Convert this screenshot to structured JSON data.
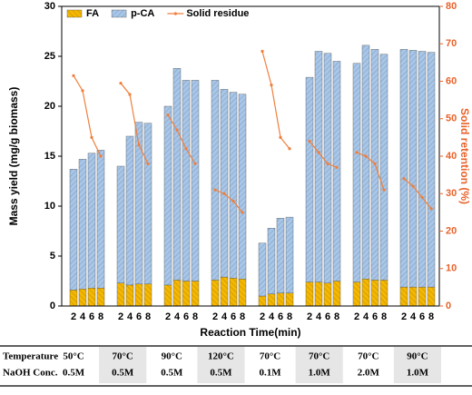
{
  "chart_data": {
    "type": "bar",
    "x_label": "Reaction Time(min)",
    "y_label": "Mass yield (mg/g biomass)",
    "y2_label": "Solid retention (%)",
    "categories": [
      "2",
      "4",
      "6",
      "8",
      "2",
      "4",
      "6",
      "8",
      "2",
      "4",
      "6",
      "8",
      "2",
      "4",
      "6",
      "8",
      "2",
      "4",
      "6",
      "8",
      "2",
      "4",
      "6",
      "8",
      "2",
      "4",
      "6",
      "8",
      "2",
      "4",
      "6",
      "8"
    ],
    "series": [
      {
        "name": "FA",
        "type": "bar",
        "color": "#f5b800",
        "values": [
          1.6,
          1.7,
          1.8,
          1.8,
          2.3,
          2.1,
          2.2,
          2.2,
          2.1,
          2.6,
          2.5,
          2.5,
          2.6,
          2.9,
          2.8,
          2.7,
          1.0,
          1.2,
          1.3,
          1.3,
          2.4,
          2.4,
          2.3,
          2.5,
          2.4,
          2.7,
          2.6,
          2.6,
          1.9,
          1.9,
          1.9,
          1.9
        ]
      },
      {
        "name": "p-CA",
        "type": "bar",
        "color": "#a8c6e8",
        "values": [
          12.1,
          13.0,
          13.5,
          13.8,
          11.7,
          14.9,
          16.2,
          16.1,
          17.9,
          21.2,
          20.1,
          20.1,
          20.0,
          18.8,
          18.6,
          18.5,
          5.3,
          6.6,
          7.5,
          7.6,
          20.5,
          23.1,
          23.0,
          22.0,
          21.9,
          23.4,
          23.1,
          22.6,
          23.8,
          23.7,
          23.6,
          23.5
        ]
      },
      {
        "name": "Solid residue",
        "type": "line",
        "axis": "y2",
        "color": "#f07f3c",
        "values": [
          61.5,
          57.5,
          45,
          40,
          59.5,
          56.5,
          43,
          38,
          51,
          47,
          42,
          38,
          31,
          30,
          28,
          25,
          68,
          59,
          45,
          42,
          44,
          41,
          38,
          37,
          41,
          40,
          38,
          31,
          34,
          32,
          29,
          26
        ]
      }
    ],
    "ylim": [
      0,
      30
    ],
    "yticks": [
      0,
      5,
      10,
      15,
      20,
      25,
      30
    ],
    "y2lim": [
      0,
      80
    ],
    "y2ticks": [
      0,
      10,
      20,
      30,
      40,
      50,
      60,
      70,
      80
    ],
    "y2_color": "#e8622a",
    "legend": "upper left",
    "grid": false
  },
  "table": {
    "rows": [
      [
        "Temperature",
        "50°C",
        "70°C",
        "90°C",
        "120°C",
        "70°C",
        "70°C",
        "70°C",
        "90°C"
      ],
      [
        "NaOH Conc.",
        "0.5M",
        "0.5M",
        "0.5M",
        "0.5M",
        "0.1M",
        "1.0M",
        "2.0M",
        "1.0M"
      ]
    ]
  }
}
